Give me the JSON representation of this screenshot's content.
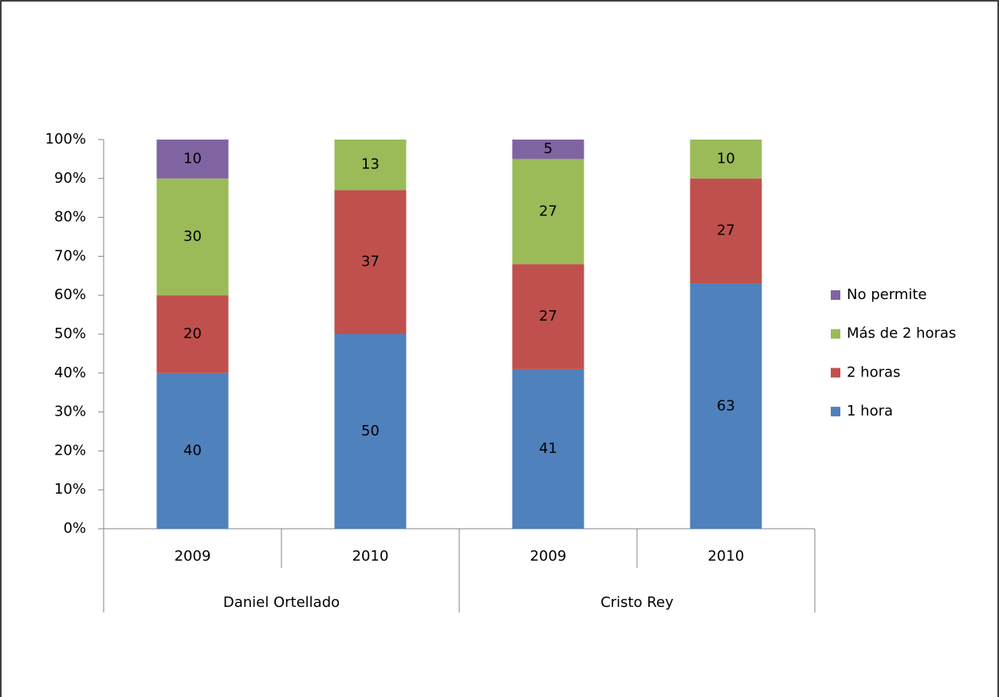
{
  "chart_data": {
    "type": "stacked_bar",
    "groups": [
      {
        "name": "Daniel Ortellado",
        "categories": [
          "2009",
          "2010"
        ]
      },
      {
        "name": "Cristo Rey",
        "categories": [
          "2009",
          "2010"
        ]
      }
    ],
    "series": [
      {
        "name": "1 hora",
        "color": "#4f81bd",
        "values": [
          40,
          50,
          41,
          63
        ]
      },
      {
        "name": "2 horas",
        "color": "#c0504d",
        "values": [
          20,
          37,
          27,
          27
        ]
      },
      {
        "name": "Más de 2 horas",
        "color": "#9bbb59",
        "values": [
          30,
          13,
          27,
          10
        ]
      },
      {
        "name": "No permite",
        "color": "#8064a2",
        "values": [
          10,
          null,
          5,
          null
        ]
      }
    ],
    "ylim": [
      0,
      100
    ],
    "yticks": [
      {
        "value": 0,
        "label": "0%"
      },
      {
        "value": 10,
        "label": "10%"
      },
      {
        "value": 20,
        "label": "20%"
      },
      {
        "value": 30,
        "label": "30%"
      },
      {
        "value": 40,
        "label": "40%"
      },
      {
        "value": 50,
        "label": "50%"
      },
      {
        "value": 60,
        "label": "60%"
      },
      {
        "value": 70,
        "label": "70%"
      },
      {
        "value": 80,
        "label": "80%"
      },
      {
        "value": 90,
        "label": "90%"
      },
      {
        "value": 100,
        "label": "100%"
      }
    ],
    "legend": "right"
  }
}
